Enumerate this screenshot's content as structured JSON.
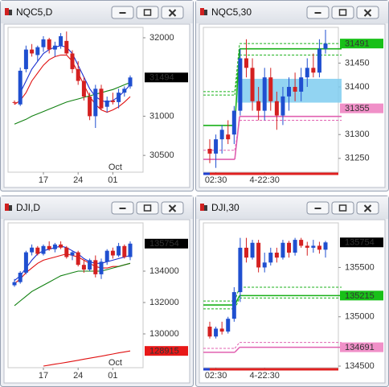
{
  "chart_data": [
    {
      "type": "candlestick",
      "title": "NQC5,D",
      "ylim": [
        30286,
        32133
      ],
      "yticks": [
        30500,
        31000,
        32000
      ],
      "up_color": "#1f4fd0",
      "down_color": "#d42020",
      "categories": [
        null,
        null,
        null,
        null,
        null,
        "17",
        null,
        null,
        null,
        null,
        null,
        "24",
        null,
        null,
        null,
        null,
        null,
        "01",
        null,
        null,
        null
      ],
      "x_sublabels": [
        null,
        null,
        null,
        null,
        null,
        null,
        null,
        null,
        null,
        null,
        null,
        null,
        null,
        null,
        null,
        null,
        null,
        "Oct",
        null,
        null,
        null
      ],
      "candles": {
        "open": [
          31180,
          31150,
          31600,
          31850,
          31780,
          31880,
          31980,
          31850,
          31900,
          31960,
          31800,
          31600,
          31450,
          31250,
          31000,
          31350,
          31120,
          31200,
          31180,
          31300,
          31380
        ],
        "high": [
          31200,
          31620,
          31900,
          31920,
          31900,
          32020,
          32000,
          31950,
          32060,
          32080,
          31840,
          31700,
          31500,
          31300,
          31400,
          31400,
          31250,
          31300,
          31350,
          31380,
          31520
        ],
        "low": [
          31150,
          31130,
          31560,
          31760,
          31700,
          31820,
          31800,
          31760,
          31860,
          31780,
          31550,
          31400,
          31200,
          30950,
          30850,
          31080,
          31050,
          31150,
          31100,
          31250,
          31350
        ],
        "close": [
          31170,
          31580,
          31850,
          31800,
          31880,
          31980,
          31850,
          31900,
          32020,
          31800,
          31600,
          31450,
          31250,
          31000,
          31350,
          31100,
          31200,
          31180,
          31300,
          31350,
          31494
        ]
      },
      "series": [
        {
          "color": "#1a2fd0",
          "values": [
            null,
            31300,
            31450,
            31600,
            31700,
            31800,
            31850,
            31880,
            31900,
            31880,
            31800,
            31650,
            31500,
            31350,
            31250,
            31200,
            31180,
            31200,
            31250,
            31320,
            31400
          ]
        },
        {
          "color": "#e01010",
          "values": [
            31150,
            31200,
            31300,
            31450,
            31550,
            31650,
            31720,
            31760,
            31780,
            31780,
            31700,
            31550,
            31400,
            31250,
            31150,
            31080,
            31050,
            31080,
            31120,
            31180,
            31250
          ]
        },
        {
          "color": "#108010",
          "values": [
            30900,
            30930,
            30960,
            31000,
            31030,
            31060,
            31090,
            31120,
            31150,
            31180,
            31200,
            31220,
            31240,
            31260,
            31280,
            31300,
            31320,
            31340,
            31370,
            31400,
            31430
          ]
        }
      ],
      "price_labels": [
        {
          "value": 31494,
          "bg": "#000000",
          "fg": "#ffffff"
        }
      ]
    },
    {
      "type": "candlestick",
      "title": "NQC5,30",
      "ylim": [
        31221,
        31525
      ],
      "yticks": [
        31250,
        31300,
        31400,
        31450
      ],
      "up_color": "#1f4fd0",
      "down_color": "#d42020",
      "categories": [
        null,
        "02:30",
        null,
        null,
        null,
        null,
        null,
        null,
        null,
        "4-22:30",
        null,
        null,
        null,
        null,
        null,
        null,
        null,
        null,
        null,
        null
      ],
      "candles": {
        "open": [
          31270,
          31260,
          31290,
          31300,
          31300,
          31350,
          31460,
          31440,
          31370,
          31350,
          31420,
          31370,
          31340,
          31380,
          31400,
          31390,
          31420,
          31440,
          31430,
          31480
        ],
        "high": [
          31290,
          31300,
          31320,
          31330,
          31360,
          31480,
          31500,
          31460,
          31400,
          31440,
          31440,
          31390,
          31400,
          31420,
          31430,
          31440,
          31460,
          31470,
          31500,
          31520
        ],
        "low": [
          31240,
          31230,
          31260,
          31280,
          31280,
          31340,
          31420,
          31350,
          31330,
          31330,
          31350,
          31310,
          31320,
          31350,
          31370,
          31370,
          31400,
          31420,
          31420,
          31470
        ],
        "close": [
          31260,
          31290,
          31310,
          31290,
          31350,
          31460,
          31440,
          31370,
          31350,
          31420,
          31370,
          31340,
          31380,
          31400,
          31390,
          31420,
          31440,
          31430,
          31480,
          31491
        ]
      },
      "level_step": 5,
      "levels": [
        {
          "color": "#18b018",
          "dashed": false,
          "values": [
            31319,
            31480
          ]
        },
        {
          "color": "#18b018",
          "dashed": true,
          "values": [
            31390,
            31491
          ]
        },
        {
          "color": "#18b018",
          "dashed": true,
          "values": [
            31383,
            31467
          ]
        },
        {
          "color": "#e060b0",
          "dashed": false,
          "values": [
            31248,
            31338
          ]
        },
        {
          "color": "#e060b0",
          "dashed": true,
          "values": [
            31267,
            31330
          ]
        }
      ],
      "zone": {
        "low": 31367,
        "high": 31417,
        "color": "#7fcdf0"
      },
      "price_labels": [
        {
          "value": 31491,
          "bg": "#18c018",
          "fg": "#000000"
        },
        {
          "value": 31355,
          "bg": "#f090c8",
          "fg": "#000000"
        }
      ]
    },
    {
      "type": "candlestick",
      "title": "DJI,D",
      "ylim": [
        127846,
        137077
      ],
      "yticks": [
        130000,
        132000,
        134000
      ],
      "up_color": "#1f4fd0",
      "down_color": "#d42020",
      "categories": [
        null,
        null,
        null,
        null,
        null,
        "17",
        null,
        null,
        null,
        null,
        null,
        "24",
        null,
        null,
        null,
        null,
        null,
        "01",
        null,
        null,
        null
      ],
      "x_sublabels": [
        null,
        null,
        null,
        null,
        null,
        null,
        null,
        null,
        null,
        null,
        null,
        null,
        null,
        null,
        null,
        null,
        null,
        "Oct",
        null,
        null,
        null
      ],
      "candles": {
        "open": [
          133100,
          133300,
          133900,
          135200,
          135500,
          135100,
          135600,
          135400,
          135700,
          135500,
          135000,
          135200,
          134400,
          134100,
          134700,
          133800,
          134600,
          135300,
          135000,
          135600,
          134900
        ],
        "high": [
          133500,
          134000,
          135300,
          135700,
          135600,
          135700,
          135900,
          135800,
          135900,
          135600,
          135300,
          135300,
          134700,
          134800,
          135000,
          134800,
          135400,
          135500,
          135800,
          135700,
          135900
        ],
        "low": [
          133000,
          133200,
          133800,
          135000,
          135000,
          135000,
          135300,
          135200,
          135400,
          134800,
          134700,
          134300,
          133900,
          134000,
          133600,
          133500,
          134400,
          134800,
          134900,
          134800,
          134700
        ],
        "close": [
          133300,
          133900,
          135200,
          135500,
          135100,
          135600,
          135400,
          135700,
          135500,
          134900,
          135200,
          134400,
          134100,
          134700,
          133800,
          134600,
          135300,
          135000,
          135600,
          134900,
          135754
        ]
      },
      "series": [
        {
          "color": "#1a2fd0",
          "values": [
            133400,
            133700,
            134200,
            134700,
            135100,
            135300,
            135400,
            135500,
            135600,
            135500,
            135300,
            135100,
            134800,
            134600,
            134500,
            134500,
            134600,
            134700,
            134800,
            134900,
            135000
          ]
        },
        {
          "color": "#e01010",
          "values": [
            133200,
            133500,
            133900,
            134200,
            134500,
            134700,
            134800,
            134900,
            135000,
            135100,
            135000,
            134900,
            134700,
            134500,
            134300,
            134200,
            134200,
            134300,
            134300,
            134400,
            134500
          ]
        },
        {
          "color": "#108010",
          "values": [
            131800,
            132100,
            132400,
            132700,
            132900,
            133100,
            133300,
            133500,
            133700,
            133800,
            133900,
            134000,
            134000,
            134000,
            134000,
            134000,
            134100,
            134200,
            134300,
            134400,
            134500
          ]
        },
        {
          "color": "#e01010",
          "values": [
            null,
            null,
            null,
            null,
            null,
            127950,
            128010,
            128070,
            128130,
            128190,
            128250,
            128320,
            128390,
            128450,
            128520,
            128580,
            128650,
            128720,
            128790,
            128850,
            128915
          ]
        }
      ],
      "price_labels": [
        {
          "value": 135754,
          "bg": "#000000",
          "fg": "#ffffff"
        },
        {
          "value": 128915,
          "bg": "#e81818",
          "fg": "#ffffff"
        }
      ]
    },
    {
      "type": "candlestick",
      "title": "DJI,30",
      "ylim": [
        134484,
        135952
      ],
      "yticks": [
        134500,
        135000,
        135500
      ],
      "up_color": "#1f4fd0",
      "down_color": "#d42020",
      "categories": [
        null,
        "02:30",
        null,
        null,
        null,
        null,
        null,
        null,
        null,
        "4-22:30",
        null,
        null,
        null,
        null,
        null,
        null,
        null,
        null,
        null,
        null
      ],
      "candles": {
        "open": [
          134900,
          134800,
          134880,
          134850,
          134980,
          135250,
          135700,
          135600,
          135750,
          135500,
          135550,
          135650,
          135600,
          135750,
          135650,
          135780,
          135720,
          135700,
          135720,
          135680
        ],
        "high": [
          134950,
          134900,
          134950,
          135000,
          135300,
          135800,
          135800,
          135780,
          135780,
          135650,
          135700,
          135700,
          135780,
          135770,
          135800,
          135800,
          135760,
          135780,
          135760,
          135770
        ],
        "low": [
          134780,
          134780,
          134820,
          134830,
          134950,
          135150,
          135550,
          135580,
          135450,
          135450,
          135520,
          135550,
          135580,
          135600,
          135620,
          135700,
          135620,
          135650,
          135640,
          135600
        ],
        "close": [
          134800,
          134880,
          134850,
          134980,
          135250,
          135700,
          135600,
          135750,
          135500,
          135550,
          135650,
          135600,
          135750,
          135650,
          135780,
          135720,
          135700,
          135720,
          135680,
          135754
        ]
      },
      "level_step": 5,
      "levels": [
        {
          "color": "#18b018",
          "dashed": false,
          "values": [
            135120,
            135215
          ]
        },
        {
          "color": "#18b018",
          "dashed": true,
          "values": [
            135160,
            135300
          ]
        },
        {
          "color": "#18b018",
          "dashed": true,
          "values": [
            135080,
            135190
          ]
        },
        {
          "color": "#e060b0",
          "dashed": false,
          "values": [
            134640,
            134691
          ]
        },
        {
          "color": "#e060b0",
          "dashed": true,
          "values": [
            134680,
            134740
          ]
        }
      ],
      "price_labels": [
        {
          "value": 135754,
          "bg": "#000000",
          "fg": "#ffffff"
        },
        {
          "value": 135215,
          "bg": "#18c018",
          "fg": "#000000"
        },
        {
          "value": 134691,
          "bg": "#f090c8",
          "fg": "#000000"
        }
      ]
    }
  ]
}
